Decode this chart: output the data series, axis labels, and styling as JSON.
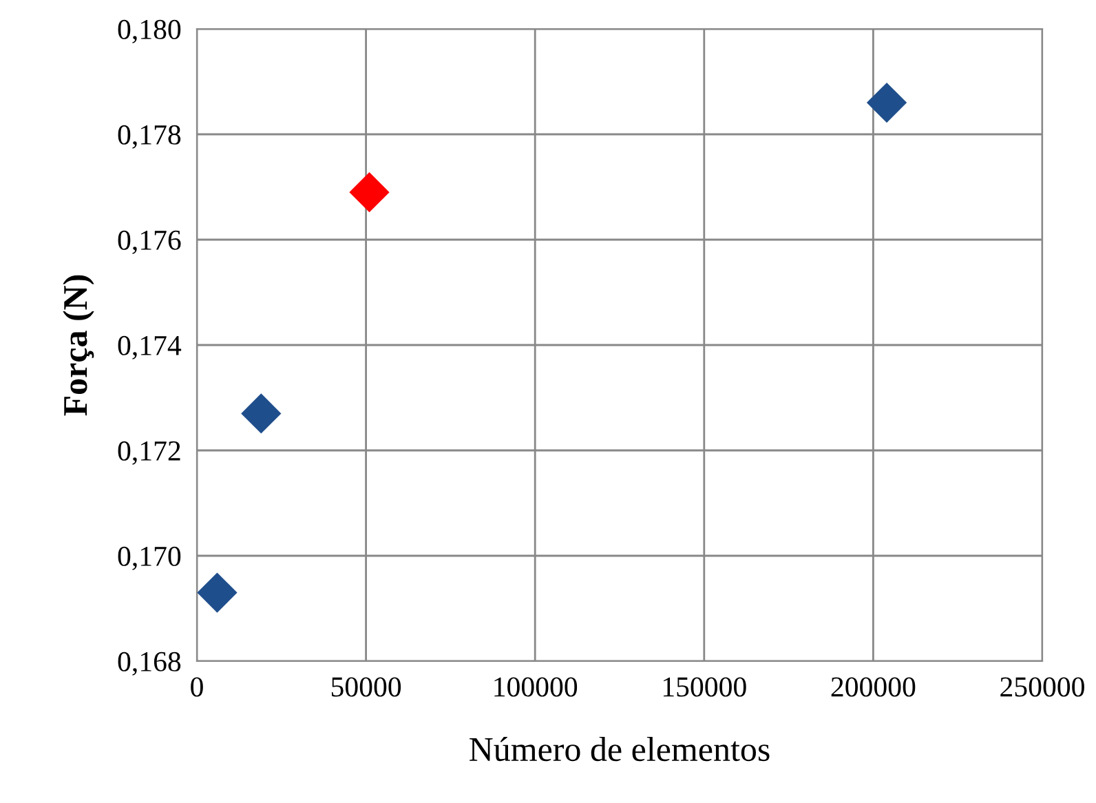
{
  "chart_data": {
    "type": "scatter",
    "xlabel": "Número de elementos",
    "ylabel": "Força (N)",
    "x": [
      6000,
      19000,
      51000,
      204000
    ],
    "values": [
      0.1693,
      0.1727,
      0.1769,
      0.1786
    ],
    "colors": [
      "#1f4e8c",
      "#1f4e8c",
      "#ff0000",
      "#1f4e8c"
    ],
    "marker": "diamond",
    "grid": true,
    "xlim": [
      0,
      250000
    ],
    "xticks": [
      0,
      50000,
      100000,
      150000,
      200000,
      250000
    ],
    "ylim": [
      0.168,
      0.18
    ],
    "yticks": [
      {
        "value": 0.168,
        "label": "0,168"
      },
      {
        "value": 0.17,
        "label": "0,170"
      },
      {
        "value": 0.172,
        "label": "0,172"
      },
      {
        "value": 0.174,
        "label": "0,174"
      },
      {
        "value": 0.176,
        "label": "0,176"
      },
      {
        "value": 0.178,
        "label": "0,178"
      },
      {
        "value": 0.18,
        "label": "0,180"
      }
    ]
  }
}
